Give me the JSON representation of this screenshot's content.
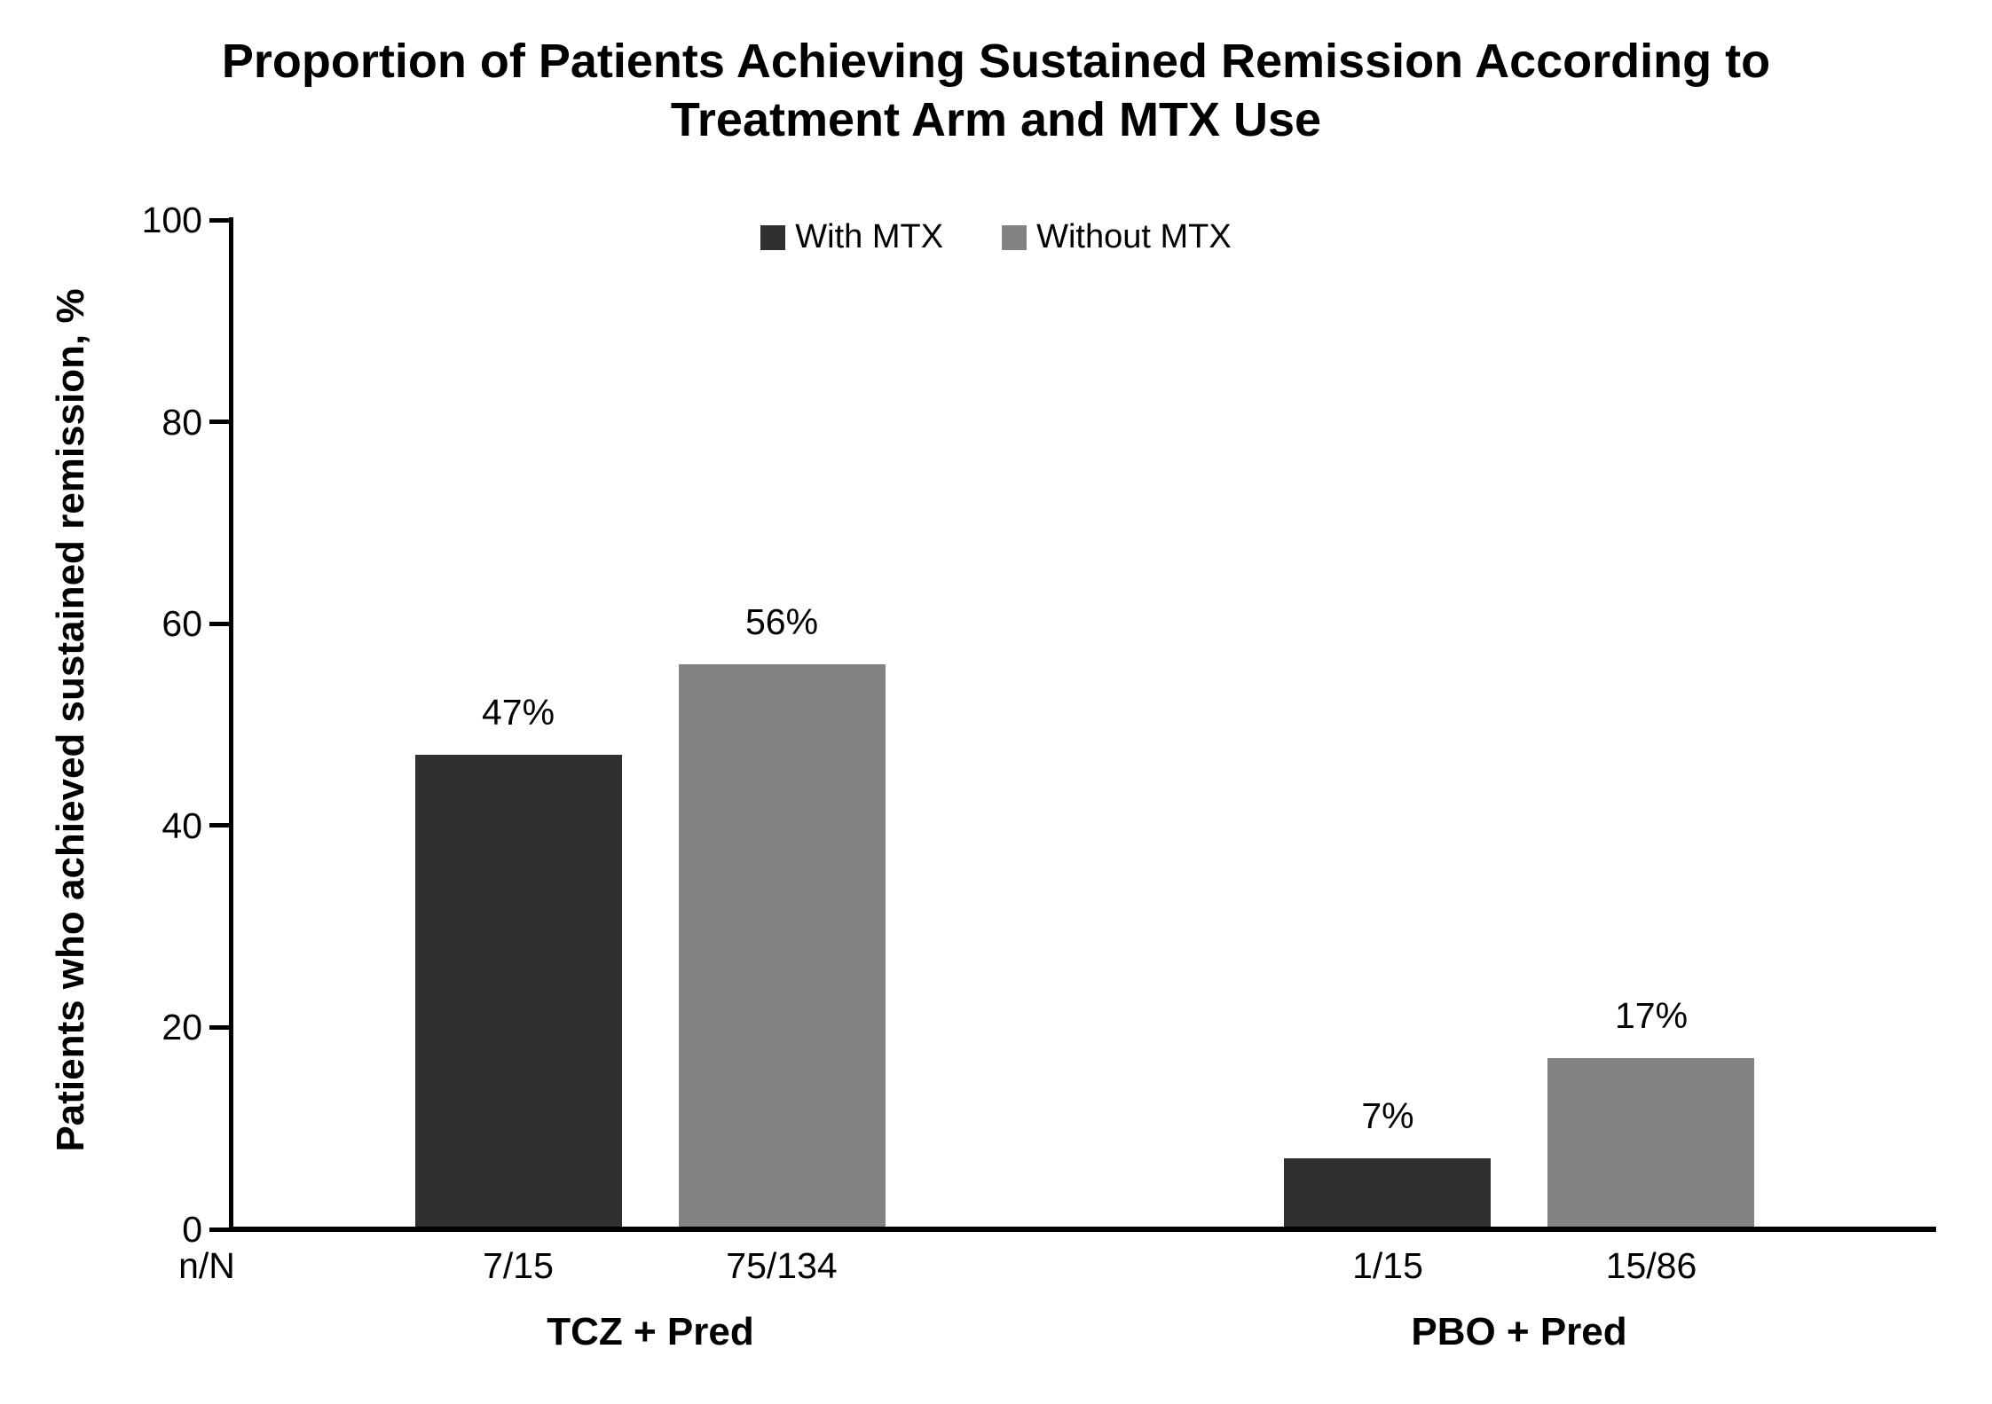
{
  "title": {
    "line1": "Proportion of Patients Achieving Sustained Remission According to",
    "line2": "Treatment Arm and MTX Use"
  },
  "chart_data": {
    "type": "bar",
    "title": "Proportion of Patients Achieving Sustained Remission According to Treatment Arm and MTX Use",
    "ylabel": "Patients who achieved sustained remission, %",
    "xlabel": "",
    "ylim": [
      0,
      100
    ],
    "yticks": [
      0,
      20,
      40,
      60,
      80,
      100
    ],
    "grid": false,
    "legend_position": "top-center",
    "n_over_N_row_label": "n/N",
    "categories": [
      "TCZ + Pred",
      "PBO + Pred"
    ],
    "series": [
      {
        "name": "With MTX",
        "color": "#303030",
        "values": [
          47,
          7
        ],
        "value_labels": [
          "47%",
          "7%"
        ],
        "n_over_N": [
          "7/15",
          "1/15"
        ]
      },
      {
        "name": "Without MTX",
        "color": "#828282",
        "values": [
          56,
          17
        ],
        "value_labels": [
          "56%",
          "17%"
        ],
        "n_over_N": [
          "75/134",
          "15/86"
        ]
      }
    ]
  }
}
